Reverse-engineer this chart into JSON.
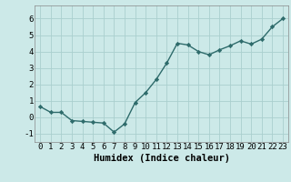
{
  "x": [
    0,
    1,
    2,
    3,
    4,
    5,
    6,
    7,
    8,
    9,
    10,
    11,
    12,
    13,
    14,
    15,
    16,
    17,
    18,
    19,
    20,
    21,
    22,
    23
  ],
  "y": [
    0.65,
    0.3,
    0.3,
    -0.2,
    -0.25,
    -0.3,
    -0.35,
    -0.9,
    -0.4,
    0.9,
    1.5,
    2.3,
    3.3,
    4.5,
    4.4,
    4.0,
    3.8,
    4.1,
    4.35,
    4.65,
    4.45,
    4.75,
    5.5,
    6.0
  ],
  "line_color": "#2e6b6b",
  "marker": "D",
  "markersize": 2.2,
  "linewidth": 1.0,
  "xlabel": "Humidex (Indice chaleur)",
  "xlim": [
    -0.5,
    23.5
  ],
  "ylim": [
    -1.5,
    6.8
  ],
  "yticks": [
    -1,
    0,
    1,
    2,
    3,
    4,
    5,
    6
  ],
  "xticks": [
    0,
    1,
    2,
    3,
    4,
    5,
    6,
    7,
    8,
    9,
    10,
    11,
    12,
    13,
    14,
    15,
    16,
    17,
    18,
    19,
    20,
    21,
    22,
    23
  ],
  "bg_color": "#cce9e8",
  "grid_color": "#aacfce",
  "tick_label_fontsize": 6.5,
  "xlabel_fontsize": 7.5,
  "font_family": "monospace"
}
